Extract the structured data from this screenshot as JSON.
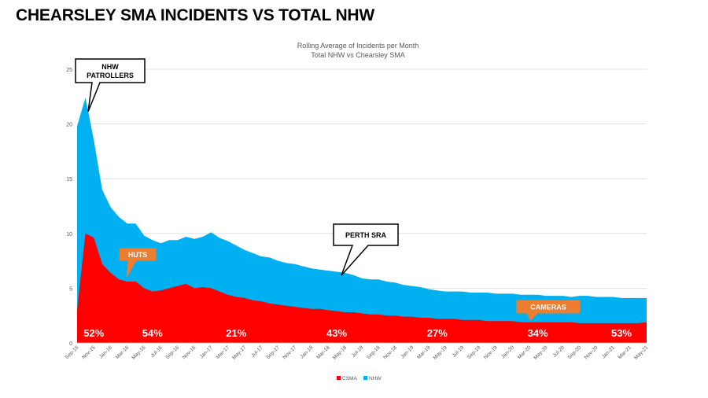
{
  "slide": {
    "title": "CHEARSLEY SMA INCIDENTS VS TOTAL NHW"
  },
  "chart_data": {
    "type": "area",
    "title": "Rolling Average of Incidents per Month",
    "subtitle": "Total NHW vs Chearsley SMA",
    "ylim": [
      0,
      25
    ],
    "yticks": [
      0,
      5,
      10,
      15,
      20,
      25
    ],
    "grid": true,
    "legend_position": "bottom",
    "x": [
      "Sep-15",
      "Oct-15",
      "Nov-15",
      "Dec-15",
      "Jan-16",
      "Feb-16",
      "Mar-16",
      "Apr-16",
      "May-16",
      "Jun-16",
      "Jul-16",
      "Aug-16",
      "Sep-16",
      "Oct-16",
      "Nov-16",
      "Dec-16",
      "Jan-17",
      "Feb-17",
      "Mar-17",
      "Apr-17",
      "May-17",
      "Jun-17",
      "Jul-17",
      "Aug-17",
      "Sep-17",
      "Oct-17",
      "Nov-17",
      "Dec-17",
      "Jan-18",
      "Feb-18",
      "Mar-18",
      "Apr-18",
      "May-18",
      "Jun-18",
      "Jul-18",
      "Aug-18",
      "Sep-18",
      "Oct-18",
      "Nov-18",
      "Dec-18",
      "Jan-19",
      "Feb-19",
      "Mar-19",
      "Apr-19",
      "May-19",
      "Jun-19",
      "Jul-19",
      "Aug-19",
      "Sep-19",
      "Oct-19",
      "Nov-19",
      "Dec-19",
      "Jan-20",
      "Feb-20",
      "Mar-20",
      "Apr-20",
      "May-20",
      "Jun-20",
      "Jul-20",
      "Aug-20",
      "Sep-20",
      "Oct-20",
      "Nov-20",
      "Dec-20",
      "Jan-21",
      "Feb-21",
      "Mar-21",
      "Apr-21",
      "May-21"
    ],
    "x_tick_labels": [
      "Sep-15",
      "Nov-15",
      "Jan-16",
      "Mar-16",
      "May-16",
      "Jul-16",
      "Sep-16",
      "Nov-16",
      "Jan-17",
      "Mar-17",
      "May-17",
      "Jul-17",
      "Sep-17",
      "Nov-17",
      "Jan-18",
      "Mar-18",
      "May-18",
      "Jul-18",
      "Sep-18",
      "Nov-18",
      "Jan-19",
      "Mar-19",
      "May-19",
      "Jul-19",
      "Sep-19",
      "Nov-19",
      "Jan-20",
      "Mar-20",
      "May-20",
      "Jul-20",
      "Sep-20",
      "Nov-20",
      "Jan-21",
      "Mar-21",
      "May-21"
    ],
    "series": [
      {
        "name": "CSMA",
        "color": "#ff0000",
        "values": [
          3.0,
          10.0,
          9.6,
          7.2,
          6.4,
          5.8,
          5.6,
          5.6,
          5.0,
          4.7,
          4.8,
          5.0,
          5.2,
          5.4,
          5.0,
          5.1,
          5.0,
          4.7,
          4.4,
          4.2,
          4.1,
          3.9,
          3.8,
          3.6,
          3.5,
          3.4,
          3.3,
          3.2,
          3.1,
          3.1,
          3.0,
          2.9,
          2.8,
          2.8,
          2.7,
          2.6,
          2.6,
          2.5,
          2.5,
          2.4,
          2.4,
          2.3,
          2.3,
          2.2,
          2.2,
          2.2,
          2.1,
          2.1,
          2.1,
          2.0,
          2.0,
          2.0,
          2.0,
          1.9,
          1.9,
          1.9,
          1.9,
          1.9,
          1.9,
          1.9,
          1.8,
          1.8,
          1.8,
          1.8,
          1.8,
          1.8,
          1.8,
          1.8,
          1.9
        ]
      },
      {
        "name": "NHW",
        "color": "#00b0f0",
        "values": [
          19.8,
          22.4,
          18.5,
          14.0,
          12.4,
          11.5,
          10.9,
          10.9,
          9.8,
          9.4,
          9.1,
          9.4,
          9.4,
          9.7,
          9.5,
          9.7,
          10.1,
          9.6,
          9.3,
          8.9,
          8.5,
          8.2,
          7.9,
          7.8,
          7.5,
          7.3,
          7.2,
          7.0,
          6.8,
          6.7,
          6.6,
          6.5,
          6.4,
          6.2,
          5.9,
          5.8,
          5.8,
          5.6,
          5.5,
          5.3,
          5.2,
          5.1,
          4.9,
          4.8,
          4.7,
          4.7,
          4.7,
          4.6,
          4.6,
          4.6,
          4.5,
          4.5,
          4.5,
          4.4,
          4.4,
          4.4,
          4.3,
          4.3,
          4.3,
          4.2,
          4.3,
          4.3,
          4.2,
          4.2,
          4.2,
          4.1,
          4.1,
          4.1,
          4.1
        ]
      }
    ],
    "percent_labels": [
      {
        "text": "52%",
        "x": "Nov-15"
      },
      {
        "text": "54%",
        "x": "Jun-16"
      },
      {
        "text": "21%",
        "x": "Apr-17"
      },
      {
        "text": "43%",
        "x": "Apr-18"
      },
      {
        "text": "27%",
        "x": "Apr-19"
      },
      {
        "text": "34%",
        "x": "Apr-20"
      },
      {
        "text": "53%",
        "x": "Feb-21"
      }
    ],
    "callouts": [
      {
        "lines": [
          "NHW",
          "PATROLLERS"
        ],
        "style": "white",
        "x": "Nov-15"
      },
      {
        "lines": [
          "HUTS"
        ],
        "style": "orange",
        "x": "Mar-16"
      },
      {
        "lines": [
          "PERTH SRA"
        ],
        "style": "white",
        "x": "May-18"
      },
      {
        "lines": [
          "CAMERAS"
        ],
        "style": "orange",
        "x": "Mar-20"
      }
    ]
  }
}
